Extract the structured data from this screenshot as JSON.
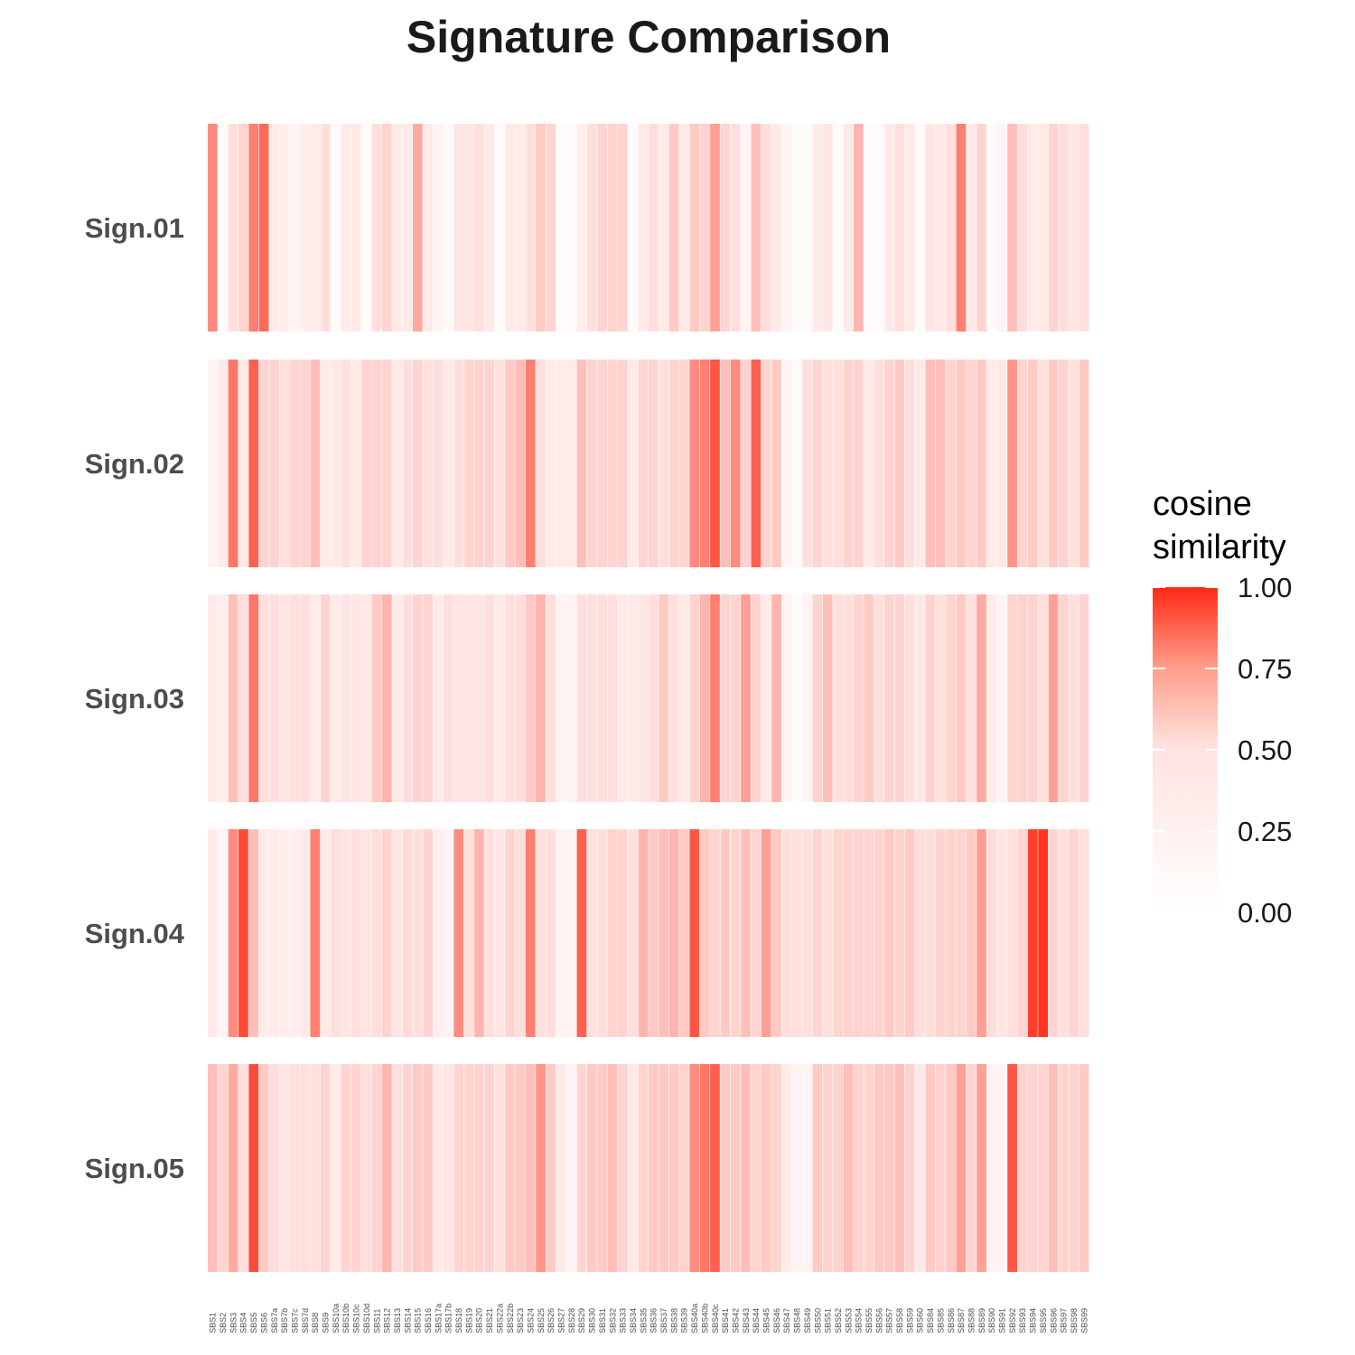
{
  "chart_data": {
    "type": "heatmap",
    "title": "Signature Comparison",
    "xlabel": "",
    "ylabel": "",
    "legend": {
      "title_lines": [
        "cosine",
        "similarity"
      ],
      "ticks": [
        "0.00",
        "0.25",
        "0.50",
        "0.75",
        "1.00"
      ],
      "range": [
        0,
        1
      ],
      "low_color": "#ffffff",
      "high_color": "#ff2a14",
      "placement": "right"
    },
    "columns": [
      "SBS1",
      "SBS2",
      "SBS3",
      "SBS4",
      "SBS5",
      "SBS6",
      "SBS7a",
      "SBS7b",
      "SBS7c",
      "SBS7d",
      "SBS8",
      "SBS9",
      "SBS10a",
      "SBS10b",
      "SBS10c",
      "SBS10d",
      "SBS11",
      "SBS12",
      "SBS13",
      "SBS14",
      "SBS15",
      "SBS16",
      "SBS17a",
      "SBS17b",
      "SBS18",
      "SBS19",
      "SBS20",
      "SBS21",
      "SBS22a",
      "SBS22b",
      "SBS23",
      "SBS24",
      "SBS25",
      "SBS26",
      "SBS27",
      "SBS28",
      "SBS29",
      "SBS30",
      "SBS31",
      "SBS32",
      "SBS33",
      "SBS34",
      "SBS35",
      "SBS36",
      "SBS37",
      "SBS38",
      "SBS39",
      "SBS40a",
      "SBS40b",
      "SBS40c",
      "SBS41",
      "SBS42",
      "SBS43",
      "SBS44",
      "SBS45",
      "SBS46",
      "SBS47",
      "SBS48",
      "SBS49",
      "SBS50",
      "SBS51",
      "SBS52",
      "SBS53",
      "SBS54",
      "SBS55",
      "SBS56",
      "SBS57",
      "SBS58",
      "SBS59",
      "SBS60",
      "SBS84",
      "SBS85",
      "SBS86",
      "SBS87",
      "SBS88",
      "SBS89",
      "SBS90",
      "SBS91",
      "SBS92",
      "SBS93",
      "SBS94",
      "SBS95",
      "SBS96",
      "SBS97",
      "SBS98",
      "SBS99"
    ],
    "rows": [
      "Sign.01",
      "Sign.02",
      "Sign.03",
      "Sign.04",
      "Sign.05"
    ],
    "values": [
      [
        0.55,
        0.02,
        0.15,
        0.2,
        0.6,
        0.7,
        0.1,
        0.08,
        0.05,
        0.08,
        0.1,
        0.15,
        0.02,
        0.1,
        0.1,
        0.02,
        0.15,
        0.2,
        0.1,
        0.1,
        0.4,
        0.1,
        0.05,
        0.02,
        0.12,
        0.12,
        0.15,
        0.1,
        0.02,
        0.1,
        0.1,
        0.15,
        0.25,
        0.2,
        0.02,
        0.02,
        0.08,
        0.15,
        0.2,
        0.2,
        0.2,
        0.02,
        0.1,
        0.15,
        0.1,
        0.25,
        0.1,
        0.25,
        0.2,
        0.45,
        0.2,
        0.15,
        0.05,
        0.3,
        0.15,
        0.1,
        0.05,
        0.02,
        0.02,
        0.1,
        0.12,
        0.02,
        0.1,
        0.35,
        0.02,
        0.02,
        0.1,
        0.15,
        0.1,
        0.02,
        0.12,
        0.1,
        0.15,
        0.6,
        0.1,
        0.2,
        0.02,
        0.05,
        0.3,
        0.15,
        0.1,
        0.1,
        0.2,
        0.15,
        0.12,
        0.15
      ],
      [
        0.05,
        0.1,
        0.65,
        0.1,
        0.75,
        0.2,
        0.2,
        0.15,
        0.2,
        0.2,
        0.3,
        0.1,
        0.1,
        0.15,
        0.1,
        0.2,
        0.2,
        0.2,
        0.1,
        0.15,
        0.2,
        0.15,
        0.15,
        0.1,
        0.15,
        0.2,
        0.2,
        0.2,
        0.15,
        0.25,
        0.3,
        0.6,
        0.15,
        0.1,
        0.1,
        0.1,
        0.3,
        0.2,
        0.2,
        0.2,
        0.2,
        0.1,
        0.2,
        0.2,
        0.15,
        0.2,
        0.2,
        0.55,
        0.6,
        0.8,
        0.3,
        0.55,
        0.2,
        0.75,
        0.2,
        0.25,
        0.05,
        0.02,
        0.15,
        0.2,
        0.15,
        0.15,
        0.2,
        0.2,
        0.1,
        0.15,
        0.2,
        0.25,
        0.15,
        0.1,
        0.3,
        0.3,
        0.2,
        0.25,
        0.2,
        0.25,
        0.1,
        0.1,
        0.5,
        0.2,
        0.25,
        0.15,
        0.25,
        0.2,
        0.15,
        0.25
      ],
      [
        0.1,
        0.08,
        0.3,
        0.15,
        0.65,
        0.15,
        0.15,
        0.12,
        0.15,
        0.15,
        0.1,
        0.2,
        0.1,
        0.12,
        0.12,
        0.1,
        0.25,
        0.35,
        0.1,
        0.15,
        0.2,
        0.2,
        0.1,
        0.15,
        0.12,
        0.12,
        0.12,
        0.15,
        0.1,
        0.15,
        0.15,
        0.25,
        0.35,
        0.15,
        0.05,
        0.05,
        0.15,
        0.15,
        0.15,
        0.15,
        0.1,
        0.1,
        0.12,
        0.15,
        0.25,
        0.15,
        0.1,
        0.2,
        0.35,
        0.6,
        0.2,
        0.2,
        0.45,
        0.2,
        0.1,
        0.35,
        0.05,
        0.02,
        0.05,
        0.2,
        0.3,
        0.15,
        0.15,
        0.2,
        0.25,
        0.15,
        0.2,
        0.2,
        0.15,
        0.1,
        0.2,
        0.15,
        0.2,
        0.25,
        0.15,
        0.4,
        0.1,
        0.05,
        0.2,
        0.2,
        0.2,
        0.15,
        0.45,
        0.2,
        0.15,
        0.2
      ],
      [
        0.1,
        0.05,
        0.55,
        0.85,
        0.3,
        0.1,
        0.1,
        0.08,
        0.08,
        0.1,
        0.6,
        0.1,
        0.15,
        0.12,
        0.15,
        0.12,
        0.15,
        0.2,
        0.12,
        0.18,
        0.15,
        0.2,
        0.08,
        0.05,
        0.55,
        0.15,
        0.35,
        0.15,
        0.12,
        0.2,
        0.15,
        0.6,
        0.15,
        0.15,
        0.05,
        0.05,
        0.75,
        0.15,
        0.15,
        0.2,
        0.2,
        0.15,
        0.35,
        0.25,
        0.3,
        0.35,
        0.25,
        0.8,
        0.25,
        0.2,
        0.25,
        0.2,
        0.3,
        0.2,
        0.45,
        0.25,
        0.15,
        0.15,
        0.15,
        0.2,
        0.15,
        0.2,
        0.2,
        0.2,
        0.2,
        0.2,
        0.25,
        0.2,
        0.25,
        0.15,
        0.15,
        0.2,
        0.2,
        0.2,
        0.25,
        0.45,
        0.15,
        0.12,
        0.15,
        0.2,
        0.9,
        0.95,
        0.2,
        0.15,
        0.2,
        0.15
      ],
      [
        0.3,
        0.2,
        0.4,
        0.15,
        0.85,
        0.25,
        0.15,
        0.12,
        0.15,
        0.15,
        0.15,
        0.2,
        0.1,
        0.2,
        0.2,
        0.15,
        0.2,
        0.35,
        0.15,
        0.2,
        0.25,
        0.25,
        0.1,
        0.12,
        0.2,
        0.2,
        0.2,
        0.2,
        0.15,
        0.25,
        0.25,
        0.3,
        0.5,
        0.25,
        0.1,
        0.05,
        0.2,
        0.25,
        0.25,
        0.3,
        0.2,
        0.1,
        0.2,
        0.25,
        0.25,
        0.25,
        0.2,
        0.55,
        0.65,
        0.75,
        0.25,
        0.25,
        0.3,
        0.2,
        0.25,
        0.2,
        0.1,
        0.05,
        0.05,
        0.25,
        0.2,
        0.2,
        0.3,
        0.2,
        0.2,
        0.25,
        0.25,
        0.3,
        0.2,
        0.1,
        0.25,
        0.2,
        0.25,
        0.45,
        0.2,
        0.45,
        0.05,
        0.05,
        0.8,
        0.2,
        0.2,
        0.2,
        0.3,
        0.2,
        0.2,
        0.25
      ]
    ]
  }
}
